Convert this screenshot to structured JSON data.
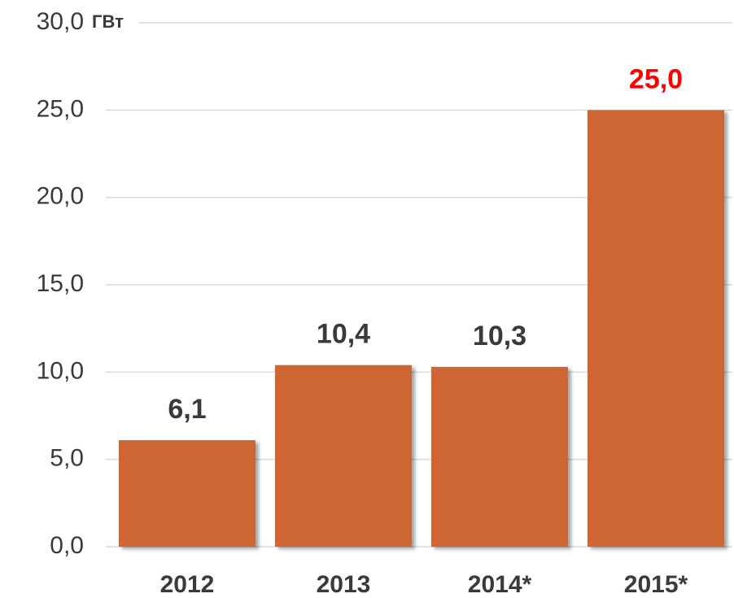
{
  "chart_data": {
    "type": "bar",
    "unit_label": "ГВт",
    "categories": [
      "2012",
      "2013",
      "2014*",
      "2015*"
    ],
    "values": [
      6.1,
      10.4,
      10.3,
      25.0
    ],
    "value_labels": [
      "6,1",
      "10,4",
      "10,3",
      "25,0"
    ],
    "value_label_colors": [
      "#3a3a3a",
      "#3a3a3a",
      "#3a3a3a",
      "#ff0000"
    ],
    "color": "#cd6633",
    "ylim": [
      0,
      30
    ],
    "yticks": [
      {
        "value": 0,
        "label": "0,0"
      },
      {
        "value": 5,
        "label": "5,0"
      },
      {
        "value": 10,
        "label": "10,0"
      },
      {
        "value": 15,
        "label": "15,0"
      },
      {
        "value": 20,
        "label": "20,0"
      },
      {
        "value": 25,
        "label": "25,0"
      },
      {
        "value": 30,
        "label": "30,0"
      }
    ],
    "grid": true
  }
}
